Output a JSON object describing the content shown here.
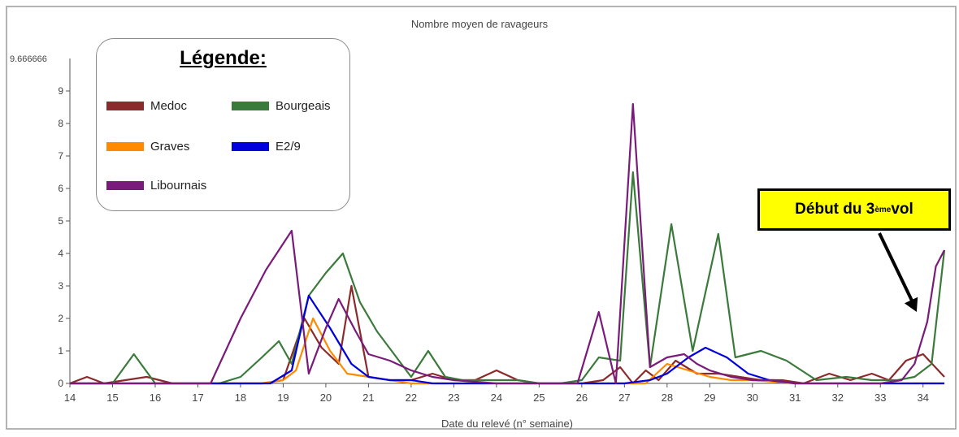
{
  "chart_data": {
    "type": "line",
    "title": "Nombre moyen de ravageurs",
    "xlabel": "Date du relevé (n° semaine)",
    "ylabel": "",
    "y_top_label": "9.666666",
    "xlim": [
      14,
      34.5
    ],
    "ylim": [
      0,
      10
    ],
    "x_ticks": [
      14,
      15,
      16,
      17,
      18,
      19,
      20,
      21,
      22,
      23,
      24,
      25,
      26,
      27,
      28,
      29,
      30,
      31,
      32,
      33,
      34
    ],
    "y_ticks": [
      0,
      1,
      2,
      3,
      4,
      5,
      6,
      7,
      8,
      9
    ],
    "legend_title": "Légende:",
    "legend_placement": "top-left",
    "series": [
      {
        "name": "Medoc",
        "color": "#8b2a2a",
        "x": [
          14,
          14.4,
          14.8,
          15.3,
          15.8,
          16.4,
          17,
          17.5,
          18,
          18.5,
          19,
          19.5,
          19.9,
          20.3,
          20.6,
          21,
          21.5,
          22,
          22.5,
          23,
          23.5,
          24,
          24.5,
          25,
          25.5,
          26,
          26.5,
          26.9,
          27.2,
          27.5,
          27.8,
          28.2,
          28.7,
          29.2,
          29.7,
          30.2,
          30.7,
          31.2,
          31.8,
          32.3,
          32.8,
          33.2,
          33.6,
          34,
          34.5
        ],
        "y": [
          0,
          0.2,
          0,
          0.1,
          0.2,
          0,
          0,
          0,
          0,
          0,
          0.1,
          2,
          1.1,
          0.6,
          3,
          0.2,
          0.1,
          0.1,
          0.3,
          0.1,
          0.1,
          0.4,
          0.1,
          0,
          0,
          0,
          0.1,
          0.5,
          0,
          0.4,
          0.1,
          0.7,
          0.3,
          0.3,
          0.2,
          0.1,
          0.1,
          0,
          0.3,
          0.1,
          0.3,
          0.1,
          0.7,
          0.9,
          0.2
        ]
      },
      {
        "name": "Bourgeais",
        "color": "#3a7a3a",
        "x": [
          14,
          14.5,
          15,
          15.5,
          16,
          16.5,
          17,
          17.5,
          18,
          18.5,
          18.9,
          19.2,
          19.6,
          20,
          20.4,
          20.8,
          21.2,
          21.6,
          22,
          22.4,
          22.8,
          23.2,
          23.6,
          24,
          24.5,
          25,
          25.5,
          26,
          26.4,
          26.9,
          27.2,
          27.6,
          28.1,
          28.6,
          29.2,
          29.6,
          30.2,
          30.8,
          31.5,
          32.2,
          32.8,
          33.4,
          33.8,
          34.2,
          34.5
        ],
        "y": [
          0,
          0,
          0,
          0.9,
          0,
          0,
          0,
          0,
          0.2,
          0.8,
          1.3,
          0.6,
          2.7,
          3.4,
          4,
          2.5,
          1.6,
          0.9,
          0.2,
          1,
          0.2,
          0.1,
          0.1,
          0.1,
          0.1,
          0,
          0,
          0.1,
          0.8,
          0.7,
          6.5,
          0.5,
          4.9,
          1,
          4.6,
          0.8,
          1,
          0.7,
          0.1,
          0.2,
          0.1,
          0.1,
          0.2,
          0.6,
          4.1
        ]
      },
      {
        "name": "Graves",
        "color": "#ff8a00",
        "x": [
          14,
          15,
          16,
          17,
          18,
          18.5,
          19,
          19.3,
          19.7,
          20.1,
          20.5,
          21,
          21.5,
          22,
          22.5,
          23,
          24,
          25,
          26,
          27,
          27.5,
          28,
          28.5,
          29,
          29.5,
          30,
          31,
          32,
          33,
          34,
          34.5
        ],
        "y": [
          0,
          0,
          0,
          0,
          0,
          0,
          0.1,
          0.4,
          2,
          1,
          0.3,
          0.2,
          0.1,
          0,
          0,
          0,
          0,
          0,
          0,
          0,
          0,
          0.6,
          0.4,
          0.2,
          0.1,
          0.1,
          0,
          0,
          0,
          0,
          0
        ]
      },
      {
        "name": "E2/9",
        "color": "#0000dd",
        "x": [
          14,
          15,
          16,
          17,
          18,
          18.7,
          19.2,
          19.6,
          20.1,
          20.6,
          21,
          21.5,
          22,
          22.5,
          23,
          24,
          25,
          26,
          27,
          27.6,
          28,
          28.5,
          28.9,
          29.4,
          29.9,
          30.4,
          31,
          32,
          33,
          34,
          34.5
        ],
        "y": [
          0,
          0,
          0,
          0,
          0,
          0,
          0.4,
          2.7,
          1.7,
          0.6,
          0.2,
          0.1,
          0.1,
          0,
          0,
          0,
          0,
          0,
          0,
          0.1,
          0.3,
          0.8,
          1.1,
          0.8,
          0.3,
          0.1,
          0,
          0,
          0,
          0,
          0
        ]
      },
      {
        "name": "Libournais",
        "color": "#7a1a7a",
        "x": [
          14,
          15,
          16,
          17,
          17.3,
          18,
          18.6,
          19.2,
          19.6,
          20,
          20.3,
          20.7,
          21,
          21.5,
          22,
          22.5,
          23,
          24,
          25,
          25.9,
          26.4,
          26.8,
          27.2,
          27.6,
          28,
          28.4,
          28.7,
          29,
          29.5,
          30,
          30.5,
          31,
          32,
          33,
          33.5,
          33.8,
          34.1,
          34.3,
          34.5
        ],
        "y": [
          0,
          0,
          0,
          0,
          0,
          2,
          3.5,
          4.7,
          0.3,
          1.7,
          2.6,
          1.6,
          0.9,
          0.7,
          0.4,
          0.2,
          0.1,
          0,
          0,
          0,
          2.2,
          0,
          8.6,
          0.5,
          0.8,
          0.9,
          0.6,
          0.4,
          0.2,
          0.1,
          0.1,
          0,
          0,
          0,
          0.1,
          0.6,
          1.9,
          3.6,
          4.1
        ]
      }
    ],
    "annotation": {
      "text_prefix": "Début du 3",
      "text_sup": "ème",
      "text_suffix": " vol",
      "background": "#ffff00",
      "arrow_target_x": 33.85,
      "arrow_target_y": 2.2
    }
  }
}
